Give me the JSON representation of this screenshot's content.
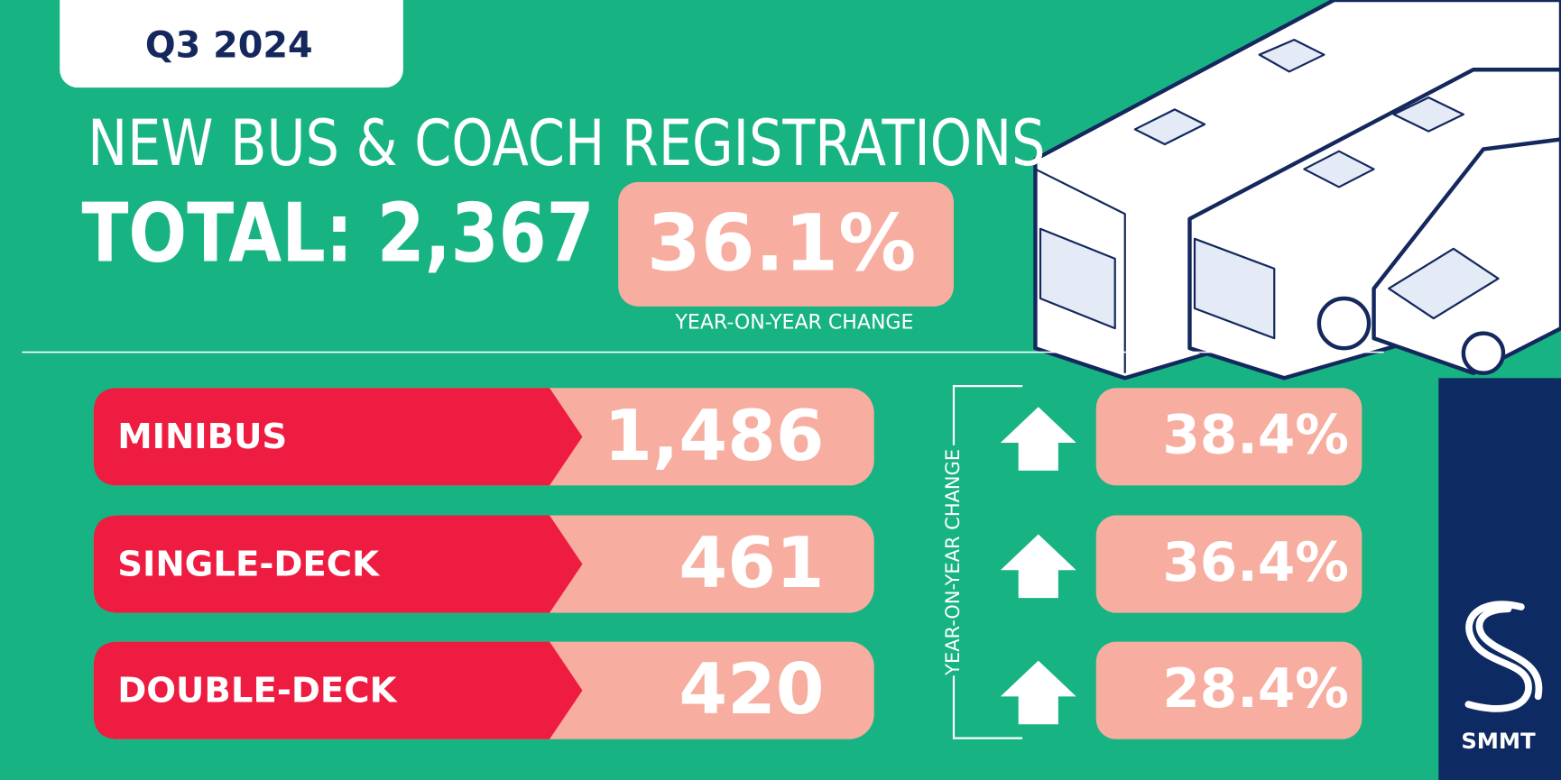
{
  "badge": "Q3 2024",
  "title": "NEW BUS & COACH REGISTRATIONS",
  "total": "TOTAL: 2,367",
  "total_change": "36.1%",
  "total_change_label": "YEAR-ON-YEAR CHANGE",
  "rows": [
    {
      "name": "MINIBUS",
      "value": "1,486",
      "change": "38.4%"
    },
    {
      "name": "SINGLE-DECK",
      "value": "461",
      "change": "36.4%"
    },
    {
      "name": "DOUBLE-DECK",
      "value": "420",
      "change": "28.4%"
    }
  ],
  "change_axis_label": "YEAR-ON-YEAR CHANGE",
  "logo": "SMMT"
}
